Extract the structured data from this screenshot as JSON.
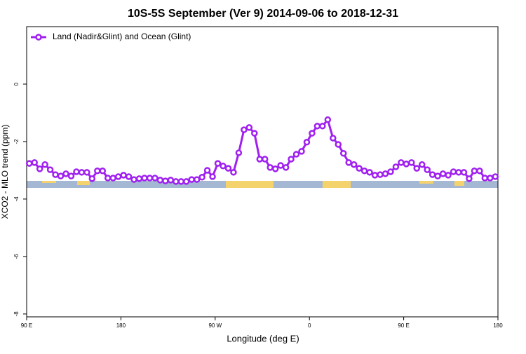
{
  "chart_data": {
    "type": "line",
    "title": "10S-5S September (Ver 9)   2014-09-06 to 2018-12-31",
    "x_label": "Longitude (deg E)",
    "y_label": "XCO2 - MLO trend (ppm)",
    "x": [
      92.5,
      97.5,
      102.5,
      107.5,
      112.5,
      117.5,
      122.5,
      127.5,
      132.5,
      137.5,
      142.5,
      147.5,
      152.5,
      157.5,
      162.5,
      167.5,
      172.5,
      177.5,
      182.5,
      187.5,
      192.5,
      197.5,
      202.5,
      207.5,
      212.5,
      217.5,
      222.5,
      227.5,
      232.5,
      237.5,
      242.5,
      247.5,
      252.5,
      257.5,
      262.5,
      267.5,
      272.5,
      277.5,
      282.5,
      287.5,
      292.5,
      297.5,
      302.5,
      307.5,
      312.5,
      317.5,
      322.5,
      327.5,
      332.5,
      337.5,
      342.5,
      347.5,
      352.5,
      357.5,
      362.5,
      367.5,
      372.5,
      377.5,
      382.5,
      387.5,
      392.5,
      397.5,
      402.5,
      407.5,
      412.5,
      417.5,
      422.5,
      427.5,
      432.5,
      437.5,
      442.5,
      447.5,
      452.5,
      457.5,
      462.5,
      467.5,
      472.5,
      477.5,
      482.5,
      487.5,
      492.5,
      497.5,
      502.5,
      507.5,
      512.5,
      517.5,
      522.5,
      527.5,
      532.5,
      537.5
    ],
    "series": [
      {
        "name": "Land (Nadir&Glint) and Ocean (Glint)",
        "color": "#a020f0",
        "values": [
          -2.76,
          -2.73,
          -2.95,
          -2.8,
          -2.98,
          -3.15,
          -3.2,
          -3.12,
          -3.2,
          -3.05,
          -3.07,
          -3.07,
          -3.29,
          -3.02,
          -3.02,
          -3.27,
          -3.27,
          -3.22,
          -3.17,
          -3.22,
          -3.32,
          -3.29,
          -3.27,
          -3.27,
          -3.27,
          -3.34,
          -3.37,
          -3.34,
          -3.39,
          -3.39,
          -3.39,
          -3.32,
          -3.32,
          -3.24,
          -3.0,
          -3.22,
          -2.76,
          -2.85,
          -2.93,
          -3.07,
          -2.39,
          -1.59,
          -1.51,
          -1.71,
          -2.61,
          -2.61,
          -2.9,
          -2.95,
          -2.83,
          -2.9,
          -2.61,
          -2.44,
          -2.34,
          -2.02,
          -1.71,
          -1.46,
          -1.46,
          -1.24,
          -1.88,
          -2.1,
          -2.41,
          -2.73,
          -2.8,
          -2.93,
          -3.02,
          -3.07,
          -3.17,
          -3.15,
          -3.12,
          -3.05,
          -2.88,
          -2.73,
          -2.78,
          -2.73,
          -2.93,
          -2.8,
          -2.98,
          -3.15,
          -3.2,
          -3.12,
          -3.17,
          -3.05,
          -3.07,
          -3.07,
          -3.29,
          -3.02,
          -3.02,
          -3.27,
          -3.27,
          -3.22
        ]
      }
    ],
    "xlim": [
      90,
      540
    ],
    "ylim": [
      -8.1,
      2
    ],
    "xticks": [
      {
        "value": 90,
        "label": "90 E"
      },
      180,
      {
        "value": 270,
        "label": "90 W"
      },
      {
        "value": 360,
        "label": "0"
      },
      {
        "value": 450,
        "label": "90 E"
      },
      {
        "value": 540,
        "label": "180"
      }
    ],
    "yticks": [
      0,
      -2,
      -4,
      -6,
      -8
    ],
    "legend": "top-left"
  }
}
